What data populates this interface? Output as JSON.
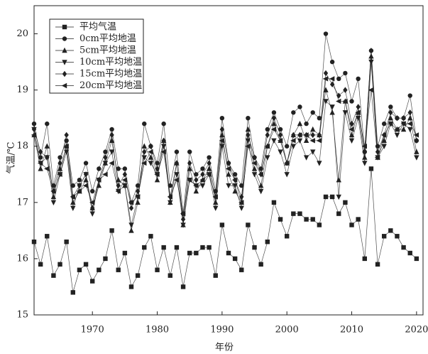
{
  "chart_data": {
    "type": "line",
    "x_label": "年份",
    "y_label": "气温/℃",
    "x": [
      1961,
      1962,
      1963,
      1964,
      1965,
      1966,
      1967,
      1968,
      1969,
      1970,
      1971,
      1972,
      1973,
      1974,
      1975,
      1976,
      1977,
      1978,
      1979,
      1980,
      1981,
      1982,
      1983,
      1984,
      1985,
      1986,
      1987,
      1988,
      1989,
      1990,
      1991,
      1992,
      1993,
      1994,
      1995,
      1996,
      1997,
      1998,
      1999,
      2000,
      2001,
      2002,
      2003,
      2004,
      2005,
      2006,
      2007,
      2008,
      2009,
      2010,
      2011,
      2012,
      2013,
      2014,
      2015,
      2016,
      2017,
      2018,
      2019,
      2020
    ],
    "xlim": [
      1961,
      2021
    ],
    "xticks": [
      1970,
      1980,
      1990,
      2000,
      2010,
      2020
    ],
    "ylim": [
      15,
      20.5
    ],
    "yticks": [
      15,
      16,
      17,
      18,
      19,
      20
    ],
    "legend": "upper left",
    "series": [
      {
        "name": "平均气温",
        "color": "#222222",
        "marker": "square",
        "values": [
          16.3,
          15.9,
          16.4,
          15.7,
          15.9,
          16.3,
          15.4,
          15.8,
          15.9,
          15.6,
          15.8,
          16.0,
          16.5,
          15.8,
          16.1,
          15.5,
          15.7,
          16.2,
          16.4,
          15.8,
          16.2,
          15.7,
          16.2,
          15.5,
          16.1,
          16.1,
          16.2,
          16.2,
          15.7,
          16.6,
          16.1,
          16.0,
          15.8,
          16.6,
          16.2,
          15.9,
          16.3,
          17.0,
          16.7,
          16.4,
          16.8,
          16.8,
          16.7,
          16.7,
          16.6,
          17.1,
          17.1,
          16.8,
          17.0,
          16.6,
          16.7,
          16.0,
          17.6,
          15.9,
          16.4,
          16.5,
          16.4,
          16.2,
          16.1,
          16.0
        ]
      },
      {
        "name": "0cm平均地温",
        "color": "#222222",
        "marker": "circle",
        "values": [
          18.4,
          17.8,
          18.4,
          17.3,
          17.8,
          18.1,
          17.3,
          17.4,
          17.7,
          17.2,
          17.6,
          17.9,
          18.3,
          17.6,
          17.6,
          17.0,
          17.3,
          18.4,
          18.0,
          17.7,
          18.4,
          17.3,
          17.9,
          16.8,
          17.9,
          17.5,
          17.6,
          17.8,
          17.2,
          18.5,
          17.7,
          17.5,
          17.3,
          18.5,
          17.8,
          17.6,
          18.3,
          18.6,
          18.3,
          18.0,
          18.6,
          18.7,
          18.4,
          18.6,
          18.5,
          20.0,
          19.5,
          19.2,
          19.3,
          18.8,
          19.2,
          17.9,
          19.7,
          18.0,
          18.4,
          18.7,
          18.5,
          18.5,
          18.9,
          18.1
        ]
      },
      {
        "name": "5cm平均地温",
        "color": "#222222",
        "marker": "triangle-up",
        "values": [
          18.2,
          17.6,
          18.0,
          17.1,
          17.6,
          18.0,
          17.0,
          17.2,
          17.4,
          16.9,
          17.3,
          17.7,
          18.1,
          17.4,
          17.3,
          16.5,
          17.0,
          18.0,
          17.8,
          17.4,
          18.1,
          17.0,
          17.7,
          16.6,
          17.6,
          17.2,
          17.4,
          17.6,
          17.0,
          18.2,
          17.5,
          17.2,
          17.0,
          18.3,
          17.6,
          17.3,
          18.0,
          18.4,
          18.1,
          17.7,
          18.2,
          18.4,
          18.1,
          18.3,
          18.2,
          19.0,
          18.6,
          17.4,
          18.8,
          18.2,
          18.6,
          17.8,
          19.6,
          17.8,
          18.1,
          18.5,
          18.3,
          18.3,
          18.5,
          17.9
        ]
      },
      {
        "name": "10cm平均地温",
        "color": "#222222",
        "marker": "triangle-down",
        "values": [
          18.3,
          17.7,
          17.8,
          17.0,
          17.5,
          17.9,
          16.9,
          17.3,
          17.5,
          16.8,
          17.4,
          17.7,
          17.9,
          17.2,
          17.3,
          16.6,
          17.1,
          17.8,
          17.7,
          17.5,
          18.0,
          17.0,
          17.5,
          16.6,
          17.4,
          17.3,
          17.3,
          17.5,
          16.9,
          18.0,
          17.3,
          17.3,
          16.9,
          18.1,
          17.5,
          17.2,
          17.8,
          18.1,
          17.9,
          17.5,
          18.0,
          18.1,
          17.8,
          17.9,
          17.7,
          18.8,
          18.7,
          17.1,
          18.6,
          18.1,
          18.5,
          17.7,
          19.5,
          17.8,
          18.0,
          18.4,
          18.2,
          18.4,
          18.3,
          17.8
        ]
      },
      {
        "name": "15cm平均地温",
        "color": "#222222",
        "marker": "diamond",
        "values": [
          18.3,
          17.9,
          17.8,
          17.2,
          17.7,
          18.2,
          17.1,
          17.3,
          17.5,
          16.9,
          17.4,
          17.8,
          18.2,
          17.3,
          17.5,
          16.9,
          17.2,
          17.9,
          18.0,
          17.6,
          18.1,
          17.1,
          17.7,
          16.7,
          17.7,
          17.4,
          17.5,
          17.7,
          17.1,
          18.3,
          17.7,
          17.4,
          17.1,
          18.2,
          17.8,
          17.5,
          18.2,
          18.5,
          18.2,
          17.7,
          18.2,
          18.2,
          18.2,
          18.2,
          18.2,
          19.3,
          19.1,
          18.9,
          19.0,
          18.4,
          18.7,
          17.9,
          19.7,
          17.9,
          18.2,
          18.6,
          18.5,
          18.5,
          18.6,
          18.1
        ]
      },
      {
        "name": "20cm平均地温",
        "color": "#222222",
        "marker": "triangle-left",
        "values": [
          18.2,
          17.7,
          17.6,
          17.2,
          17.5,
          18.0,
          17.1,
          17.2,
          17.3,
          17.0,
          17.4,
          17.5,
          17.7,
          17.2,
          17.4,
          17.0,
          17.1,
          17.7,
          17.9,
          17.5,
          17.9,
          17.1,
          17.4,
          16.8,
          17.4,
          17.3,
          17.4,
          17.5,
          17.1,
          18.1,
          17.6,
          17.4,
          17.0,
          18.0,
          17.7,
          17.5,
          18.0,
          18.3,
          18.1,
          17.7,
          18.1,
          18.2,
          18.2,
          18.1,
          18.1,
          19.2,
          19.2,
          18.8,
          18.8,
          18.3,
          18.6,
          18.0,
          19.0,
          17.8,
          18.2,
          18.4,
          18.3,
          18.4,
          18.4,
          18.2
        ]
      }
    ]
  }
}
